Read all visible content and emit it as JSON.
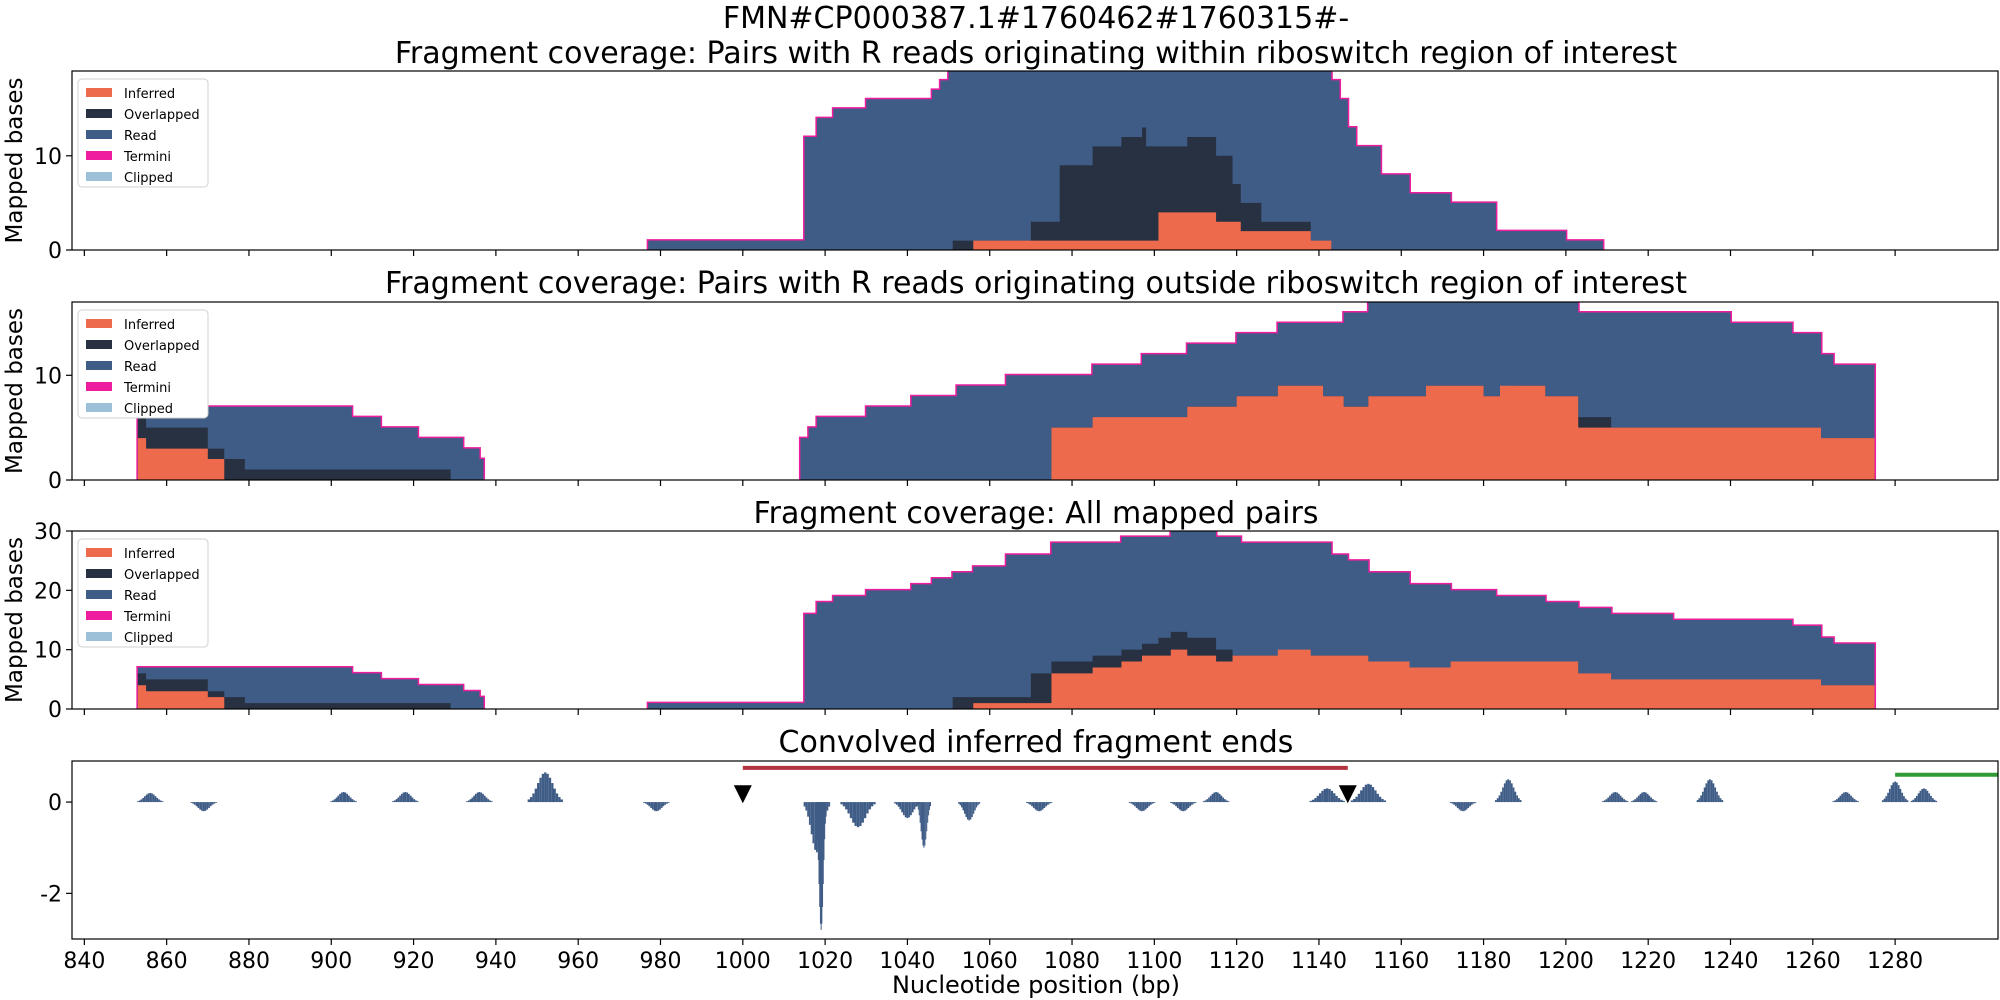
{
  "figure": {
    "suptitle": "FMN#CP000387.1#1760462#1760315#-",
    "xlabel": "Nucleotide position (bp)",
    "x_ticks": [
      840,
      860,
      880,
      900,
      920,
      940,
      960,
      980,
      1000,
      1020,
      1040,
      1060,
      1080,
      1100,
      1120,
      1140,
      1160,
      1180,
      1200,
      1220,
      1240,
      1260,
      1280
    ],
    "xlim": [
      837,
      1305
    ]
  },
  "legend": [
    {
      "label": "Inferred",
      "color": "#ee6a4d"
    },
    {
      "label": "Overlapped",
      "color": "#283142"
    },
    {
      "label": "Read",
      "color": "#3f5c86"
    },
    {
      "label": "Termini",
      "color": "#ee1c9e"
    },
    {
      "label": "Clipped",
      "color": "#9dc0d9"
    }
  ],
  "colors": {
    "marker": "#000000",
    "region_line": "#b2333d",
    "green_line": "#2f9a36"
  },
  "chart_data": [
    {
      "type": "area",
      "title": "Fragment coverage: Pairs with R reads originating within riboswitch region of interest",
      "ylabel": "Mapped bases",
      "ylim": [
        0,
        19
      ],
      "y_ticks": [
        0,
        10
      ],
      "stacked_order": [
        "Inferred",
        "Overlapped",
        "Read"
      ],
      "steps": [
        [
          977,
          1,
          0,
          0
        ],
        [
          1015,
          12,
          0,
          0
        ],
        [
          1018,
          14,
          0,
          0
        ],
        [
          1022,
          15,
          0,
          0
        ],
        [
          1030,
          16,
          0,
          0
        ],
        [
          1046,
          17,
          0,
          0
        ],
        [
          1048,
          18,
          0,
          0
        ],
        [
          1050,
          19,
          0,
          0
        ],
        [
          1051,
          19,
          1,
          0
        ],
        [
          1056,
          19,
          1,
          1
        ],
        [
          1070,
          19,
          3,
          1
        ],
        [
          1077,
          19,
          9,
          1
        ],
        [
          1085,
          19,
          11,
          1
        ],
        [
          1092,
          19,
          12,
          1
        ],
        [
          1097,
          19,
          13,
          1
        ],
        [
          1098,
          19,
          11,
          1
        ],
        [
          1101,
          19,
          11,
          4
        ],
        [
          1104,
          19,
          11,
          4
        ],
        [
          1108,
          19,
          12,
          4
        ],
        [
          1111,
          19,
          12,
          4
        ],
        [
          1115,
          19,
          10,
          3
        ],
        [
          1119,
          19,
          7,
          3
        ],
        [
          1121,
          19,
          5,
          2
        ],
        [
          1126,
          19,
          3,
          2
        ],
        [
          1130,
          19,
          3,
          2
        ],
        [
          1138,
          19,
          0,
          1
        ],
        [
          1143,
          18,
          0,
          0
        ],
        [
          1145,
          16,
          0,
          0
        ],
        [
          1147,
          13,
          0,
          0
        ],
        [
          1149,
          11,
          0,
          0
        ],
        [
          1155,
          8,
          0,
          0
        ],
        [
          1162,
          6,
          0,
          0
        ],
        [
          1172,
          5,
          0,
          0
        ],
        [
          1183,
          2,
          0,
          0
        ],
        [
          1200,
          1,
          0,
          0
        ],
        [
          1209,
          0,
          0,
          0
        ]
      ]
    },
    {
      "type": "area",
      "title": "Fragment coverage: Pairs with R reads originating outside riboswitch region of interest",
      "ylabel": "Mapped bases",
      "ylim": [
        0,
        17
      ],
      "y_ticks": [
        0,
        10
      ],
      "stacked_order": [
        "Inferred",
        "Overlapped",
        "Read"
      ],
      "steps": [
        [
          853,
          6,
          6,
          4
        ],
        [
          855,
          7,
          5,
          3
        ],
        [
          864,
          7,
          5,
          3
        ],
        [
          870,
          7,
          3,
          2
        ],
        [
          874,
          7,
          2,
          0
        ],
        [
          879,
          7,
          1,
          0
        ],
        [
          886,
          7,
          1,
          0
        ],
        [
          894,
          7,
          1,
          0
        ],
        [
          905,
          6,
          1,
          0
        ],
        [
          912,
          5,
          1,
          0
        ],
        [
          921,
          4,
          1,
          0
        ],
        [
          929,
          4,
          0,
          0
        ],
        [
          932,
          3,
          0,
          0
        ],
        [
          936,
          2,
          0,
          0
        ],
        [
          937,
          0,
          0,
          0
        ],
        [
          1014,
          4,
          0,
          0
        ],
        [
          1016,
          5,
          0,
          0
        ],
        [
          1018,
          6,
          0,
          0
        ],
        [
          1030,
          7,
          0,
          0
        ],
        [
          1041,
          8,
          0,
          0
        ],
        [
          1052,
          9,
          0,
          0
        ],
        [
          1064,
          10,
          0,
          0
        ],
        [
          1075,
          10,
          5,
          5
        ],
        [
          1085,
          11,
          6,
          6
        ],
        [
          1097,
          12,
          6,
          6
        ],
        [
          1108,
          13,
          7,
          7
        ],
        [
          1120,
          14,
          8,
          8
        ],
        [
          1130,
          15,
          9,
          9
        ],
        [
          1141,
          15,
          8,
          8
        ],
        [
          1146,
          16,
          7,
          7
        ],
        [
          1152,
          17,
          8,
          8
        ],
        [
          1166,
          17,
          9,
          9
        ],
        [
          1180,
          17,
          8,
          8
        ],
        [
          1184,
          17,
          8,
          9
        ],
        [
          1188,
          17,
          9,
          9
        ],
        [
          1195,
          17,
          8,
          8
        ],
        [
          1203,
          16,
          6,
          5
        ],
        [
          1211,
          16,
          5,
          5
        ],
        [
          1226,
          16,
          5,
          5
        ],
        [
          1240,
          15,
          5,
          5
        ],
        [
          1255,
          14,
          5,
          5
        ],
        [
          1262,
          12,
          4,
          4
        ],
        [
          1265,
          11,
          4,
          4
        ],
        [
          1275,
          0,
          0,
          0
        ]
      ]
    },
    {
      "type": "area",
      "title": "Fragment coverage: All mapped pairs",
      "ylabel": "Mapped bases",
      "ylim": [
        0,
        30
      ],
      "y_ticks": [
        0,
        10,
        20,
        30
      ],
      "stacked_order": [
        "Inferred",
        "Overlapped",
        "Read"
      ],
      "steps": [
        [
          853,
          7,
          6,
          4
        ],
        [
          855,
          7,
          5,
          3
        ],
        [
          864,
          7,
          5,
          3
        ],
        [
          870,
          7,
          3,
          2
        ],
        [
          874,
          7,
          2,
          0
        ],
        [
          879,
          7,
          1,
          0
        ],
        [
          886,
          7,
          1,
          0
        ],
        [
          894,
          7,
          1,
          0
        ],
        [
          905,
          6,
          1,
          0
        ],
        [
          912,
          5,
          1,
          0
        ],
        [
          921,
          4,
          1,
          0
        ],
        [
          929,
          4,
          0,
          0
        ],
        [
          932,
          3,
          0,
          0
        ],
        [
          936,
          2,
          0,
          0
        ],
        [
          937,
          0,
          0,
          0
        ],
        [
          977,
          1,
          0,
          0
        ],
        [
          1015,
          16,
          0,
          0
        ],
        [
          1018,
          18,
          0,
          0
        ],
        [
          1022,
          19,
          0,
          0
        ],
        [
          1030,
          20,
          0,
          0
        ],
        [
          1041,
          21,
          0,
          0
        ],
        [
          1046,
          22,
          0,
          0
        ],
        [
          1051,
          23,
          2,
          0
        ],
        [
          1056,
          24,
          2,
          1
        ],
        [
          1064,
          26,
          2,
          1
        ],
        [
          1070,
          26,
          6,
          1
        ],
        [
          1075,
          28,
          8,
          6
        ],
        [
          1085,
          28,
          9,
          7
        ],
        [
          1092,
          29,
          10,
          8
        ],
        [
          1097,
          29,
          11,
          9
        ],
        [
          1101,
          29,
          12,
          9
        ],
        [
          1104,
          30,
          13,
          10
        ],
        [
          1108,
          30,
          12,
          9
        ],
        [
          1115,
          29,
          10,
          8
        ],
        [
          1119,
          29,
          9,
          9
        ],
        [
          1121,
          28,
          9,
          9
        ],
        [
          1130,
          28,
          9,
          10
        ],
        [
          1138,
          28,
          9,
          9
        ],
        [
          1143,
          26,
          9,
          9
        ],
        [
          1147,
          25,
          9,
          9
        ],
        [
          1152,
          23,
          8,
          8
        ],
        [
          1162,
          21,
          7,
          7
        ],
        [
          1172,
          20,
          8,
          8
        ],
        [
          1183,
          19,
          8,
          8
        ],
        [
          1195,
          18,
          8,
          8
        ],
        [
          1203,
          17,
          6,
          6
        ],
        [
          1211,
          16,
          5,
          5
        ],
        [
          1226,
          15,
          5,
          5
        ],
        [
          1240,
          15,
          5,
          5
        ],
        [
          1255,
          14,
          5,
          5
        ],
        [
          1262,
          12,
          4,
          4
        ],
        [
          1265,
          11,
          4,
          4
        ],
        [
          1275,
          0,
          0,
          0
        ]
      ]
    },
    {
      "type": "bar",
      "title": "Convolved inferred fragment ends",
      "ylabel": "",
      "ylim": [
        -3,
        0.9
      ],
      "y_ticks": [
        -2,
        0
      ],
      "peaks": [
        {
          "center": 856,
          "height": 0.2,
          "width": 3
        },
        {
          "center": 869,
          "height": -0.2,
          "width": 3
        },
        {
          "center": 903,
          "height": 0.22,
          "width": 3
        },
        {
          "center": 918,
          "height": 0.22,
          "width": 3
        },
        {
          "center": 936,
          "height": 0.22,
          "width": 3
        },
        {
          "center": 952,
          "height": 0.65,
          "width": 4
        },
        {
          "center": 979,
          "height": -0.2,
          "width": 3
        },
        {
          "center": 1018,
          "height": -1.1,
          "width": 3
        },
        {
          "center": 1019,
          "height": -2.8,
          "width": 1.2
        },
        {
          "center": 1028,
          "height": -0.55,
          "width": 4
        },
        {
          "center": 1040,
          "height": -0.35,
          "width": 3
        },
        {
          "center": 1044,
          "height": -1.0,
          "width": 1.6
        },
        {
          "center": 1055,
          "height": -0.4,
          "width": 2.5
        },
        {
          "center": 1072,
          "height": -0.2,
          "width": 3
        },
        {
          "center": 1097,
          "height": -0.2,
          "width": 3
        },
        {
          "center": 1107,
          "height": -0.2,
          "width": 3
        },
        {
          "center": 1115,
          "height": 0.22,
          "width": 3
        },
        {
          "center": 1142,
          "height": 0.3,
          "width": 4
        },
        {
          "center": 1152,
          "height": 0.4,
          "width": 4
        },
        {
          "center": 1175,
          "height": -0.2,
          "width": 3
        },
        {
          "center": 1186,
          "height": 0.5,
          "width": 3
        },
        {
          "center": 1212,
          "height": 0.22,
          "width": 3
        },
        {
          "center": 1219,
          "height": 0.22,
          "width": 3
        },
        {
          "center": 1235,
          "height": 0.5,
          "width": 3
        },
        {
          "center": 1268,
          "height": 0.22,
          "width": 3
        },
        {
          "center": 1280,
          "height": 0.45,
          "width": 3
        },
        {
          "center": 1287,
          "height": 0.3,
          "width": 3
        }
      ],
      "markers": [
        1000,
        1147
      ],
      "region_line": [
        1000,
        1147,
        0.75
      ],
      "green_line": [
        1280,
        1305,
        0.6
      ]
    }
  ]
}
